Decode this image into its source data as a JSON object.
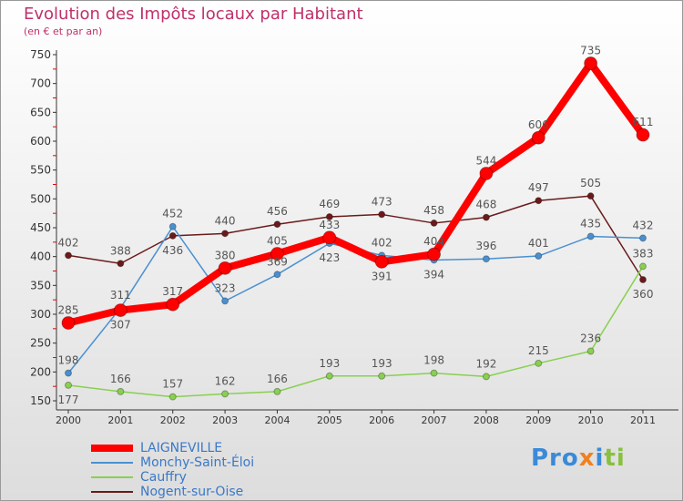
{
  "chart_data": {
    "type": "line",
    "title": "Evolution des Impôts locaux par Habitant",
    "subtitle": "(en € et par an)",
    "x": [
      "2000",
      "2001",
      "2002",
      "2003",
      "2004",
      "2005",
      "2006",
      "2007",
      "2008",
      "2009",
      "2010",
      "2011"
    ],
    "ylim": [
      150,
      750
    ],
    "yticks": [
      150,
      200,
      250,
      300,
      350,
      400,
      450,
      500,
      550,
      600,
      650,
      700,
      750
    ],
    "series": [
      {
        "name": "LAIGNEVILLE",
        "color": "#ff0000",
        "values": [
          285,
          307,
          317,
          380,
          405,
          433,
          391,
          404,
          544,
          606,
          735,
          611
        ]
      },
      {
        "name": "Monchy-Saint-Éloi",
        "color": "#4a90d0",
        "values": [
          198,
          311,
          452,
          323,
          369,
          423,
          402,
          394,
          396,
          401,
          435,
          432
        ]
      },
      {
        "name": "Cauffry",
        "color": "#88d050",
        "values": [
          177,
          166,
          157,
          162,
          166,
          193,
          193,
          198,
          192,
          215,
          236,
          383
        ]
      },
      {
        "name": "Nogent-sur-Oise",
        "color": "#6b1a1a",
        "values": [
          402,
          388,
          436,
          440,
          456,
          469,
          473,
          458,
          468,
          497,
          505,
          360
        ]
      }
    ]
  },
  "logo": "Proxiti"
}
